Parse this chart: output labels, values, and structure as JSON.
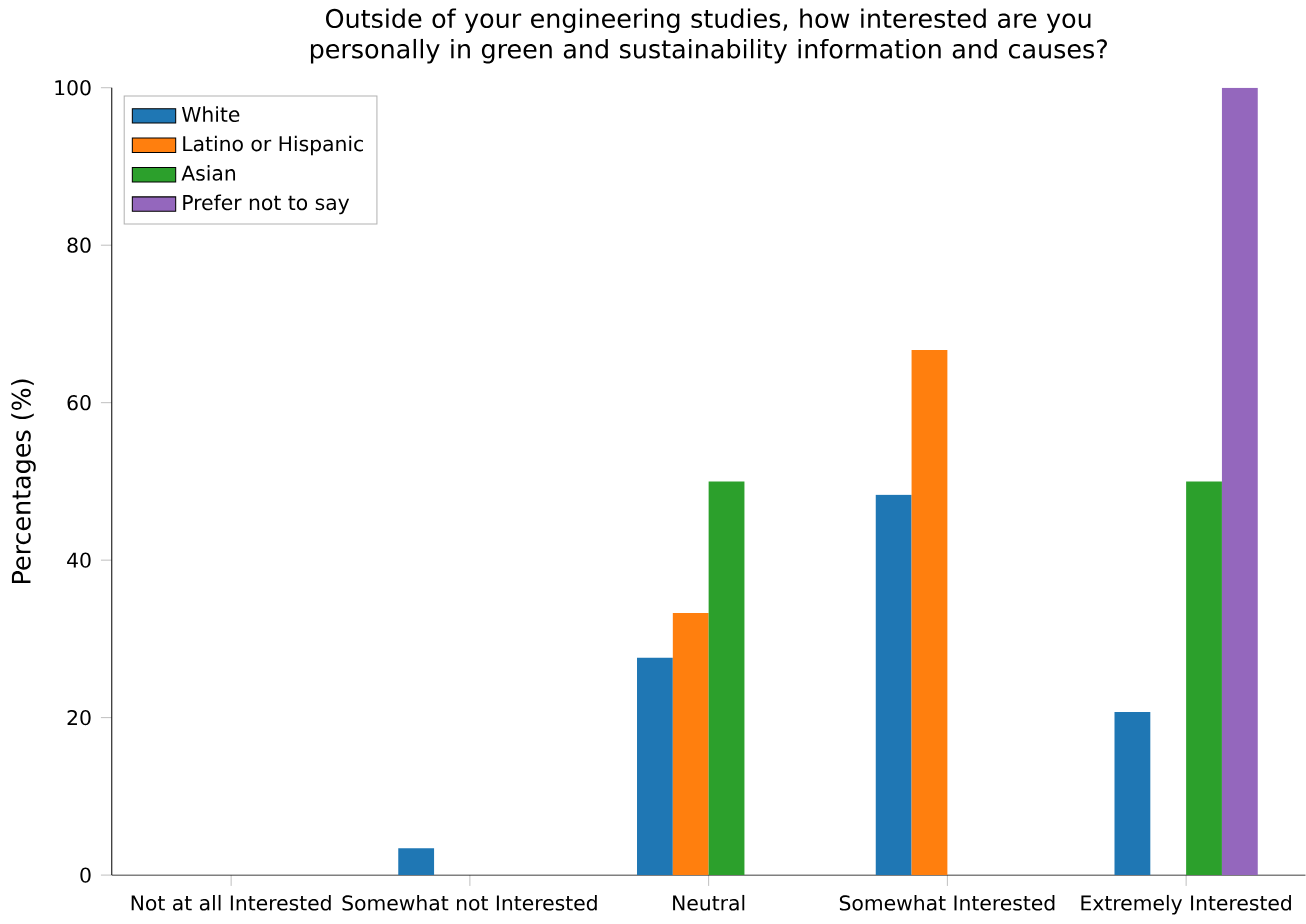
{
  "chart_data": {
    "type": "bar",
    "title": "Outside of your engineering studies, how interested are you personally in green and sustainability information and causes?",
    "ylabel": "Percentages (%)",
    "categories": [
      "Not at all Interested",
      "Somewhat not Interested",
      "Neutral",
      "Somewhat Interested",
      "Extremely Interested"
    ],
    "series": [
      {
        "name": "White",
        "color": "#1f77b4",
        "values": [
          0,
          3.4,
          27.6,
          48.3,
          20.7
        ]
      },
      {
        "name": "Latino or Hispanic",
        "color": "#ff7f0e",
        "values": [
          0,
          0,
          33.3,
          66.7,
          0
        ]
      },
      {
        "name": "Asian",
        "color": "#2ca02c",
        "values": [
          0,
          0,
          50,
          0,
          50
        ]
      },
      {
        "name": "Prefer not to say",
        "color": "#9467bd",
        "values": [
          0,
          0,
          0,
          0,
          100
        ]
      }
    ],
    "ylim": [
      0,
      100
    ],
    "yticks": [
      0,
      20,
      40,
      60,
      80,
      100
    ],
    "legend": "top left",
    "grid": false
  }
}
